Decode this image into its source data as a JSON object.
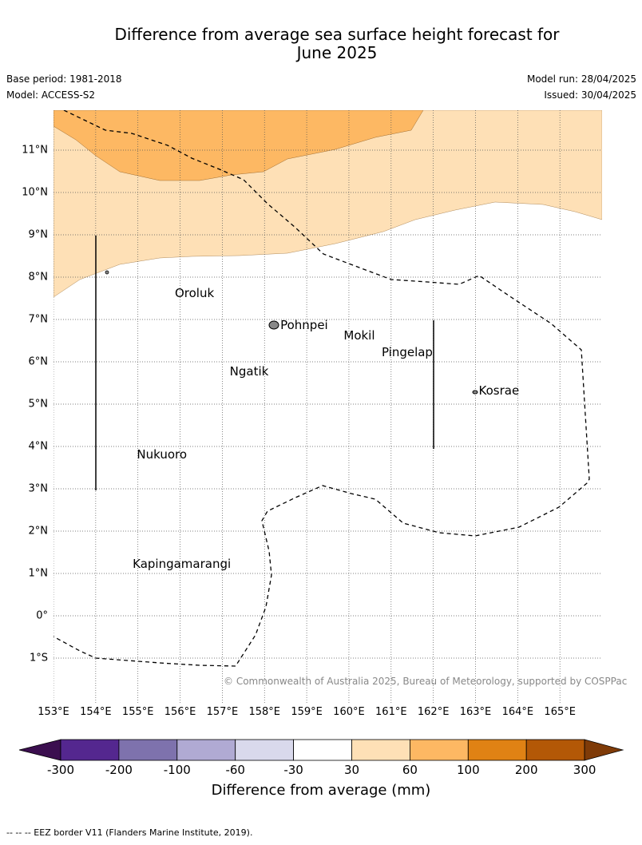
{
  "title": {
    "line1": "Difference from average sea surface height forecast for",
    "line2": "June 2025"
  },
  "meta": {
    "base_period": "Base period: 1981-2018",
    "model": "Model: ACCESS-S2",
    "model_run": "Model run: 28/04/2025",
    "issued": "Issued: 30/04/2025"
  },
  "axes": {
    "lon_labels": [
      "153°E",
      "154°E",
      "155°E",
      "156°E",
      "157°E",
      "158°E",
      "159°E",
      "160°E",
      "161°E",
      "162°E",
      "163°E",
      "164°E",
      "165°E"
    ],
    "lat_labels": [
      "11°N",
      "10°N",
      "9°N",
      "8°N",
      "7°N",
      "6°N",
      "5°N",
      "4°N",
      "3°N",
      "2°N",
      "1°N",
      "0°",
      "1°S"
    ],
    "lon_range": [
      153,
      165.7
    ],
    "lat_range": [
      -2,
      11.9
    ],
    "grid": true
  },
  "places": [
    {
      "name": "Oroluk",
      "lon": 155.8,
      "lat": 7.6
    },
    {
      "name": "Pohnpei",
      "lon": 158.3,
      "lat": 6.85
    },
    {
      "name": "Mokil",
      "lon": 159.8,
      "lat": 6.6
    },
    {
      "name": "Pingelap",
      "lon": 160.7,
      "lat": 6.2
    },
    {
      "name": "Ngatik",
      "lon": 157.1,
      "lat": 5.75
    },
    {
      "name": "Kosrae",
      "lon": 163.0,
      "lat": 5.3
    },
    {
      "name": "Nukuoro",
      "lon": 154.9,
      "lat": 3.8
    },
    {
      "name": "Kapingamarangi",
      "lon": 154.8,
      "lat": 1.2
    }
  ],
  "copyright": "© Commonwealth of Australia 2025, Bureau of Meteorology, supported by COSPPac",
  "colorbar": {
    "title": "Difference from average (mm)",
    "labels": [
      "-300",
      "-200",
      "-100",
      "-60",
      "-30",
      "30",
      "60",
      "100",
      "200",
      "300"
    ],
    "colors": [
      "#3b0f4f",
      "#54278f",
      "#7e72ad",
      "#b0aad3",
      "#d9d9ec",
      "#ffffff",
      "#fee0b6",
      "#fdb863",
      "#e08214",
      "#b35806",
      "#7f3b08"
    ]
  },
  "legend_footer": "--  --  -- EEZ border V11 (Flanders Marine Institute, 2019).",
  "field_colors": {
    "band_30_60": "#fee0b6",
    "band_60_100": "#fdb863"
  }
}
